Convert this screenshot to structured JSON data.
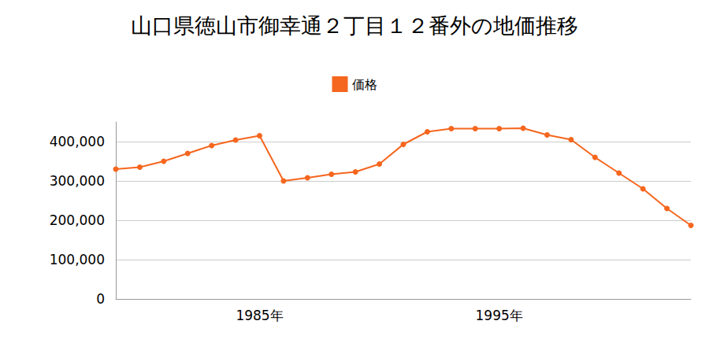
{
  "chart_data": {
    "type": "line",
    "title": "山口県徳山市御幸通２丁目１２番外の地価推移",
    "categories": [
      null,
      null,
      null,
      null,
      null,
      null,
      "1985年",
      null,
      null,
      null,
      null,
      null,
      null,
      null,
      null,
      null,
      "1995年",
      null,
      null,
      null,
      null,
      null,
      null,
      null,
      null
    ],
    "series": [
      {
        "name": "価格",
        "color": "#f5661e",
        "marker": "circle",
        "values": [
          330000,
          335000,
          350000,
          370000,
          390000,
          404000,
          415000,
          300000,
          308000,
          317000,
          323000,
          343000,
          393000,
          425000,
          433000,
          433000,
          433000,
          434000,
          417000,
          405000,
          360000,
          320000,
          280000,
          230000,
          187000
        ]
      }
    ],
    "ylim": [
      0,
      450000
    ],
    "yticks": [
      0,
      {
        "value": 100000,
        "label": "100,000"
      },
      {
        "value": 200000,
        "label": "200,000"
      },
      {
        "value": 300000,
        "label": "300,000"
      },
      {
        "value": 400000,
        "label": "400,000"
      }
    ],
    "grid": true,
    "legend": "top"
  }
}
